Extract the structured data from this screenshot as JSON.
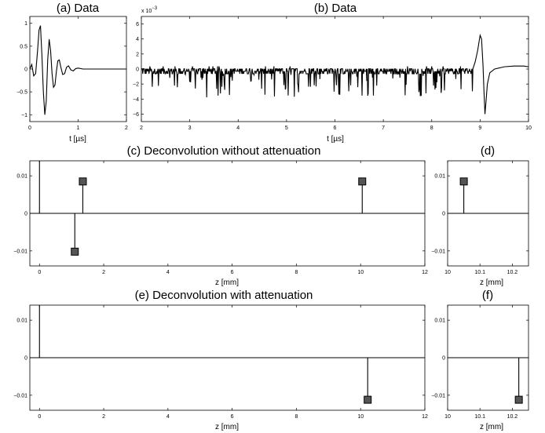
{
  "chart_data": [
    {
      "id": "a",
      "type": "line",
      "title": "(a) Data",
      "xlabel": "t [µs]",
      "ylabel": "",
      "xlim": [
        0,
        2
      ],
      "ylim": [
        -1.15,
        1.15
      ],
      "xticks": [
        0,
        1,
        2
      ],
      "yticks": [
        -1,
        -0.5,
        0,
        0.5,
        1
      ],
      "xtick_labels": [
        "0",
        "1",
        "2"
      ],
      "ytick_labels": [
        "−1",
        "−0.5",
        "0",
        "0.5",
        "1"
      ],
      "series": [
        {
          "x": [
            0,
            0.04,
            0.08,
            0.12,
            0.16,
            0.19,
            0.22,
            0.25,
            0.28,
            0.31,
            0.34,
            0.37,
            0.4,
            0.43,
            0.46,
            0.49,
            0.52,
            0.55,
            0.58,
            0.61,
            0.64,
            0.68,
            0.72,
            0.76,
            0.8,
            0.85,
            0.9,
            0.95,
            1.0,
            1.1,
            1.3,
            1.6,
            2.0
          ],
          "y": [
            0,
            0.1,
            -0.15,
            -0.1,
            0.4,
            0.85,
            0.95,
            0.3,
            -0.5,
            -1.0,
            -0.7,
            0.2,
            0.65,
            0.4,
            -0.1,
            -0.4,
            -0.35,
            -0.05,
            0.18,
            0.2,
            0.05,
            -0.12,
            -0.1,
            0.04,
            0.07,
            -0.02,
            -0.04,
            0.01,
            0.02,
            0,
            0,
            0,
            0
          ]
        }
      ]
    },
    {
      "id": "b",
      "type": "line",
      "title": "(b) Data",
      "xlabel": "t [µs]",
      "ylabel": "",
      "scale_label": "x 10",
      "scale_exponent": "−3",
      "xlim": [
        2,
        10
      ],
      "ylim": [
        -7,
        7
      ],
      "xticks": [
        2,
        3,
        4,
        5,
        6,
        7,
        8,
        9,
        10
      ],
      "yticks": [
        -6,
        -4,
        -2,
        0,
        2,
        4,
        6
      ],
      "xtick_labels": [
        "2",
        "3",
        "4",
        "5",
        "6",
        "7",
        "8",
        "9",
        "10"
      ],
      "ytick_labels": [
        "−6",
        "−4",
        "−2",
        "0",
        "2",
        "4",
        "6"
      ],
      "series": [
        {
          "noise": {
            "x_start": 2.0,
            "x_end": 8.85,
            "baseline": -0.3,
            "quant": 0.55,
            "spike_max": -3.5
          },
          "x": [
            8.85,
            8.9,
            8.95,
            9.0,
            9.03,
            9.06,
            9.08,
            9.1,
            9.12,
            9.15,
            9.2,
            9.3,
            9.5,
            9.7,
            9.9,
            10.0
          ],
          "y": [
            0,
            1.0,
            2.5,
            4.5,
            4.0,
            0.5,
            -3.0,
            -6.0,
            -4.5,
            -2.0,
            -0.5,
            0,
            0.3,
            0.4,
            0.4,
            0.3
          ]
        }
      ]
    },
    {
      "id": "c",
      "type": "stem",
      "title": "(c) Deconvolution without attenuation",
      "xlabel": "z [mm]",
      "ylabel": "",
      "xlim": [
        -0.3,
        12
      ],
      "ylim": [
        -0.014,
        0.014
      ],
      "xticks": [
        0,
        2,
        4,
        6,
        8,
        10,
        12
      ],
      "yticks": [
        -0.01,
        0,
        0.01
      ],
      "xtick_labels": [
        "0",
        "2",
        "4",
        "6",
        "8",
        "10",
        "12"
      ],
      "ytick_labels": [
        "−0.01",
        "0",
        "0.01"
      ],
      "stems": [
        {
          "x": 0.0,
          "y": 0.05,
          "marker": false
        },
        {
          "x": 1.1,
          "y": -0.0102,
          "marker": true
        },
        {
          "x": 1.35,
          "y": 0.0085,
          "marker": true
        },
        {
          "x": 10.05,
          "y": 0.0085,
          "marker": true
        }
      ]
    },
    {
      "id": "d",
      "type": "stem",
      "title": "(d)",
      "xlabel": "z [mm]",
      "ylabel": "",
      "xlim": [
        10.0,
        10.25
      ],
      "ylim": [
        -0.014,
        0.014
      ],
      "xticks": [
        10.0,
        10.1,
        10.2
      ],
      "yticks": [
        -0.01,
        0,
        0.01
      ],
      "xtick_labels": [
        "10",
        "10.1",
        "10.2"
      ],
      "ytick_labels": [
        "−0.01",
        "0",
        "0.01"
      ],
      "stems": [
        {
          "x": 10.05,
          "y": 0.0085,
          "marker": true
        }
      ]
    },
    {
      "id": "e",
      "type": "stem",
      "title": "(e) Deconvolution with attenuation",
      "xlabel": "z [mm]",
      "ylabel": "",
      "xlim": [
        -0.3,
        12
      ],
      "ylim": [
        -0.014,
        0.014
      ],
      "xticks": [
        0,
        2,
        4,
        6,
        8,
        10,
        12
      ],
      "yticks": [
        -0.01,
        0,
        0.01
      ],
      "xtick_labels": [
        "0",
        "2",
        "4",
        "6",
        "8",
        "10",
        "12"
      ],
      "ytick_labels": [
        "−0.01",
        "0",
        "0.01"
      ],
      "stems": [
        {
          "x": 0.0,
          "y": 0.05,
          "marker": false
        },
        {
          "x": 10.22,
          "y": -0.0112,
          "marker": true
        }
      ]
    },
    {
      "id": "f",
      "type": "stem",
      "title": "(f)",
      "xlabel": "z [mm]",
      "ylabel": "",
      "xlim": [
        10.0,
        10.25
      ],
      "ylim": [
        -0.014,
        0.014
      ],
      "xticks": [
        10.0,
        10.1,
        10.2
      ],
      "yticks": [
        -0.01,
        0,
        0.01
      ],
      "xtick_labels": [
        "10",
        "10.1",
        "10.2"
      ],
      "ytick_labels": [
        "−0.01",
        "0",
        "0.01"
      ],
      "stems": [
        {
          "x": 10.22,
          "y": -0.0112,
          "marker": true
        }
      ]
    }
  ],
  "colors": {
    "line": "#000000",
    "marker_fill": "#555555"
  }
}
